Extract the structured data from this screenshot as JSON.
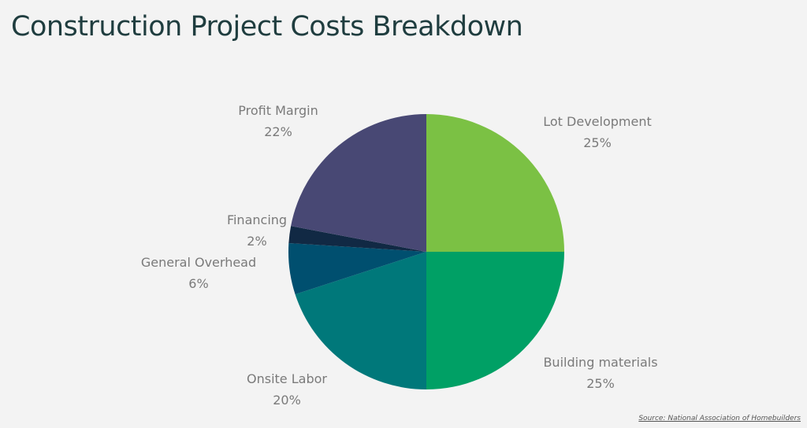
{
  "title": "Construction Project Costs Breakdown",
  "source": "Source: National Association of Homebuilders",
  "chart_data": {
    "type": "pie",
    "slices": [
      {
        "label": "Lot Development",
        "value": 25,
        "value_label": "25%",
        "color": "#7bc144"
      },
      {
        "label": "Building materials",
        "value": 25,
        "value_label": "25%",
        "color": "#00a065"
      },
      {
        "label": "Onsite Labor",
        "value": 20,
        "value_label": "20%",
        "color": "#00787a"
      },
      {
        "label": "General Overhead",
        "value": 6,
        "value_label": "6%",
        "color": "#004f6f"
      },
      {
        "label": "Financing",
        "value": 2,
        "value_label": "2%",
        "color": "#112944"
      },
      {
        "label": "Profit Margin",
        "value": 22,
        "value_label": "22%",
        "color": "#484874"
      }
    ],
    "start": "12 o'clock",
    "direction": "clockwise",
    "legend": "none (slice labels outside)"
  }
}
